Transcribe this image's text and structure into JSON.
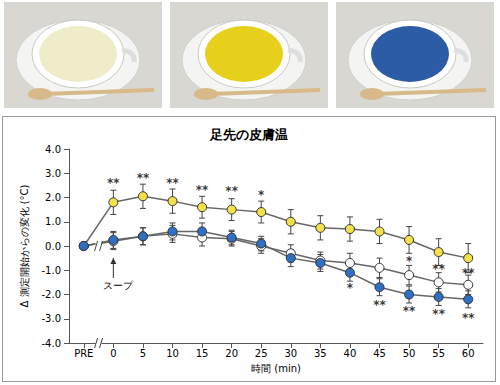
{
  "chart_data": {
    "type": "line",
    "title": "足先の皮膚温",
    "x_label": "時間 (min)",
    "y_label": "Δ 測定開始からの変化 (°C)",
    "categories": [
      "PRE",
      "0",
      "5",
      "10",
      "15",
      "20",
      "25",
      "30",
      "35",
      "40",
      "45",
      "50",
      "55",
      "60"
    ],
    "ylim": [
      -4,
      4
    ],
    "yticks": [
      {
        "value": -4,
        "label": "-4.0"
      },
      {
        "value": -3,
        "label": "-3.0"
      },
      {
        "value": -2,
        "label": "-2.0"
      },
      {
        "value": -1,
        "label": "-1.0"
      },
      {
        "value": 0,
        "label": "0.0"
      },
      {
        "value": 1,
        "label": "1.0"
      },
      {
        "value": 2,
        "label": "2.0"
      },
      {
        "value": 3,
        "label": "3.0"
      },
      {
        "value": 4,
        "label": "4.0"
      }
    ],
    "grid": false,
    "series": [
      {
        "color": "#f2e14c",
        "marker": "circle",
        "values": [
          0,
          1.8,
          2.05,
          1.85,
          1.6,
          1.5,
          1.4,
          1.0,
          0.75,
          0.7,
          0.6,
          0.25,
          -0.25,
          -0.5
        ],
        "errors": [
          null,
          0.5,
          0.5,
          0.5,
          0.45,
          0.45,
          0.45,
          0.5,
          0.5,
          0.5,
          0.5,
          0.55,
          0.55,
          0.6
        ]
      },
      {
        "color": "#ffffff",
        "marker": "circle",
        "values": [
          0,
          0.2,
          0.4,
          0.5,
          0.35,
          0.3,
          0.0,
          -0.3,
          -0.6,
          -0.7,
          -0.9,
          -1.2,
          -1.5,
          -1.6
        ],
        "errors": [
          null,
          0.35,
          0.35,
          0.35,
          0.35,
          0.3,
          0.3,
          0.35,
          0.35,
          0.4,
          0.4,
          0.4,
          0.4,
          0.4
        ]
      },
      {
        "color": "#2f6fc4",
        "marker": "circle",
        "values": [
          0,
          0.25,
          0.4,
          0.6,
          0.6,
          0.35,
          0.1,
          -0.5,
          -0.7,
          -1.1,
          -1.7,
          -2.0,
          -2.1,
          -2.2
        ],
        "errors": [
          null,
          0.35,
          0.35,
          0.35,
          0.35,
          0.3,
          0.3,
          0.35,
          0.35,
          0.35,
          0.35,
          0.35,
          0.35,
          0.35
        ]
      }
    ],
    "annotations": [
      {
        "text": "**",
        "x": "0",
        "y": 2.6
      },
      {
        "text": "**",
        "x": "5",
        "y": 2.8
      },
      {
        "text": "**",
        "x": "10",
        "y": 2.6
      },
      {
        "text": "**",
        "x": "15",
        "y": 2.3
      },
      {
        "text": "**",
        "x": "20",
        "y": 2.25
      },
      {
        "text": "*",
        "x": "25",
        "y": 2.1
      },
      {
        "text": "*",
        "x": "50",
        "y": -0.6
      },
      {
        "text": "**",
        "x": "55",
        "y": -0.95
      },
      {
        "text": "**",
        "x": "60",
        "y": -1.1
      },
      {
        "text": "*",
        "x": "40",
        "y": -1.75
      },
      {
        "text": "**",
        "x": "45",
        "y": -2.45
      },
      {
        "text": "**",
        "x": "50",
        "y": -2.7
      },
      {
        "text": "**",
        "x": "55",
        "y": -2.8
      },
      {
        "text": "**",
        "x": "60",
        "y": -2.95
      }
    ],
    "event": {
      "text": "スープ",
      "x": "0"
    }
  }
}
